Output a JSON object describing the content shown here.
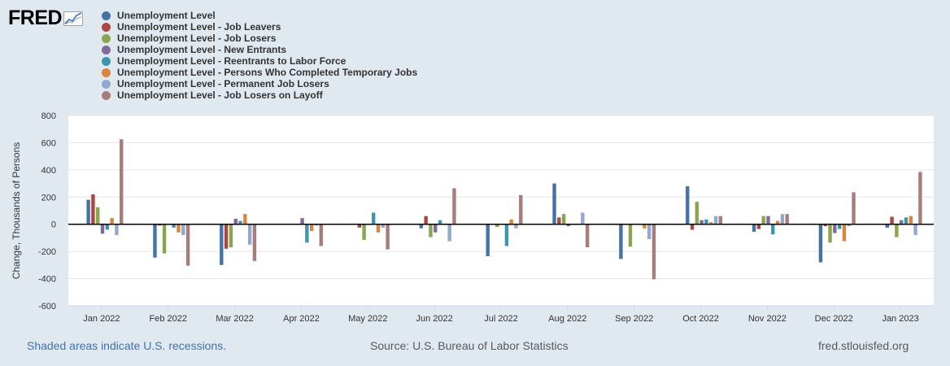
{
  "logo": {
    "text": "FRED",
    "icon": "line-chart-icon"
  },
  "footer": {
    "recessions_note": "Shaded areas indicate U.S. recessions.",
    "source": "Source: U.S. Bureau of Labor Statistics",
    "site": "fred.stlouisfed.org"
  },
  "chart_data": {
    "type": "bar",
    "title": "",
    "xlabel": "",
    "ylabel": "Change, Thousands of Persons",
    "ylim": [
      -600,
      800
    ],
    "yticks": [
      -600,
      -400,
      -200,
      0,
      200,
      400,
      600,
      800
    ],
    "grid": true,
    "categories": [
      "Jan 2022",
      "Feb 2022",
      "Mar 2022",
      "Apr 2022",
      "May 2022",
      "Jun 2022",
      "Jul 2022",
      "Aug 2022",
      "Sep 2022",
      "Oct 2022",
      "Nov 2022",
      "Dec 2022",
      "Jan 2023"
    ],
    "series": [
      {
        "name": "Unemployment Level",
        "color": "#4572a7",
        "values": [
          180,
          -245,
          -300,
          0,
          5,
          -30,
          -235,
          300,
          -255,
          280,
          -55,
          -280,
          -25
        ]
      },
      {
        "name": "Unemployment Level - Job Leavers",
        "color": "#aa4643",
        "values": [
          220,
          -10,
          -180,
          0,
          -25,
          60,
          0,
          50,
          0,
          -40,
          -35,
          -15,
          55
        ]
      },
      {
        "name": "Unemployment Level - Job Losers",
        "color": "#89a54e",
        "values": [
          125,
          -215,
          -170,
          0,
          -115,
          -95,
          -20,
          75,
          -165,
          165,
          60,
          -135,
          -95
        ]
      },
      {
        "name": "Unemployment Level - New Entrants",
        "color": "#80699b",
        "values": [
          -70,
          0,
          40,
          45,
          0,
          -60,
          0,
          -15,
          0,
          30,
          60,
          -65,
          30
        ]
      },
      {
        "name": "Unemployment Level - Reentrants to Labor Force",
        "color": "#3d96ae",
        "values": [
          -40,
          -25,
          25,
          -135,
          85,
          30,
          -160,
          0,
          0,
          35,
          -75,
          -35,
          50
        ]
      },
      {
        "name": "Unemployment Level - Persons Who Completed Temporary Jobs",
        "color": "#db843d",
        "values": [
          45,
          -60,
          75,
          -50,
          -60,
          0,
          35,
          0,
          -30,
          15,
          25,
          -125,
          60
        ]
      },
      {
        "name": "Unemployment Level - Permanent Job Losers",
        "color": "#92a8cd",
        "values": [
          -80,
          -80,
          -150,
          -10,
          -25,
          -125,
          -30,
          85,
          -110,
          60,
          75,
          -15,
          -80
        ]
      },
      {
        "name": "Unemployment Level - Job Losers on Layoff",
        "color": "#a47d7c",
        "values": [
          625,
          -305,
          -270,
          -160,
          -185,
          265,
          215,
          -170,
          -405,
          60,
          75,
          235,
          385
        ]
      }
    ]
  }
}
